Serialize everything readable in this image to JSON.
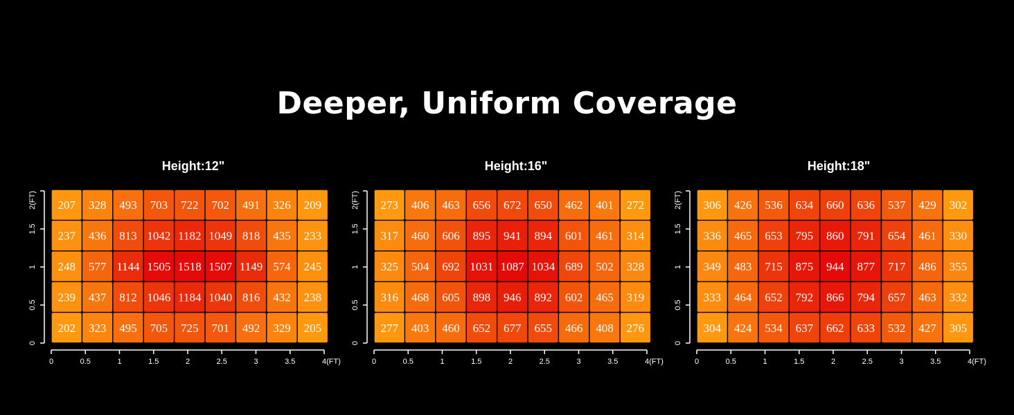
{
  "page": {
    "title": "Deeper, Uniform Coverage"
  },
  "chart_data": [
    {
      "type": "heatmap",
      "title": "Height:12\"",
      "x_ticks": [
        "0",
        "0.5",
        "1",
        "1.5",
        "2",
        "2.5",
        "3",
        "3.5",
        "4(FT)"
      ],
      "y_ticks": [
        "0",
        "0.5",
        "1",
        "1.5",
        "2(FT)"
      ],
      "xlim": [
        0,
        4
      ],
      "ylim": [
        0,
        2
      ],
      "rows": [
        [
          207,
          328,
          493,
          703,
          722,
          702,
          491,
          326,
          209
        ],
        [
          237,
          436,
          813,
          1042,
          1182,
          1049,
          818,
          435,
          233
        ],
        [
          248,
          577,
          1144,
          1505,
          1518,
          1507,
          1149,
          574,
          245
        ],
        [
          239,
          437,
          812,
          1046,
          1184,
          1040,
          816,
          432,
          238
        ],
        [
          202,
          323,
          495,
          705,
          725,
          701,
          492,
          329,
          205
        ]
      ],
      "grid": false
    },
    {
      "type": "heatmap",
      "title": "Height:16\"",
      "x_ticks": [
        "0",
        "0.5",
        "1",
        "1.5",
        "2",
        "2.5",
        "3",
        "3.5",
        "4(FT)"
      ],
      "y_ticks": [
        "0",
        "0.5",
        "1",
        "1.5",
        "2(FT)"
      ],
      "xlim": [
        0,
        4
      ],
      "ylim": [
        0,
        2
      ],
      "rows": [
        [
          273,
          406,
          463,
          656,
          672,
          650,
          462,
          401,
          272
        ],
        [
          317,
          460,
          606,
          895,
          941,
          894,
          601,
          461,
          314
        ],
        [
          325,
          504,
          692,
          1031,
          1087,
          1034,
          689,
          502,
          328
        ],
        [
          316,
          468,
          605,
          898,
          946,
          892,
          602,
          465,
          319
        ],
        [
          277,
          403,
          460,
          652,
          677,
          655,
          466,
          408,
          276
        ]
      ],
      "grid": false
    },
    {
      "type": "heatmap",
      "title": "Height:18\"",
      "x_ticks": [
        "0",
        "0.5",
        "1",
        "1.5",
        "2",
        "2.5",
        "3",
        "3.5",
        "4(FT)"
      ],
      "y_ticks": [
        "0",
        "0.5",
        "1",
        "1.5",
        "2(FT)"
      ],
      "xlim": [
        0,
        4
      ],
      "ylim": [
        0,
        2
      ],
      "rows": [
        [
          306,
          426,
          536,
          634,
          660,
          636,
          537,
          429,
          302
        ],
        [
          336,
          465,
          653,
          795,
          860,
          791,
          654,
          461,
          330
        ],
        [
          349,
          483,
          715,
          875,
          944,
          877,
          717,
          486,
          355
        ],
        [
          333,
          464,
          652,
          792,
          866,
          794,
          657,
          463,
          332
        ],
        [
          304,
          424,
          534,
          637,
          662,
          633,
          532,
          427,
          305
        ]
      ],
      "grid": false
    }
  ],
  "colors": {
    "background": "#000000",
    "text": "#ffffff",
    "low": "#ff9a10",
    "high": "#e40a08"
  }
}
